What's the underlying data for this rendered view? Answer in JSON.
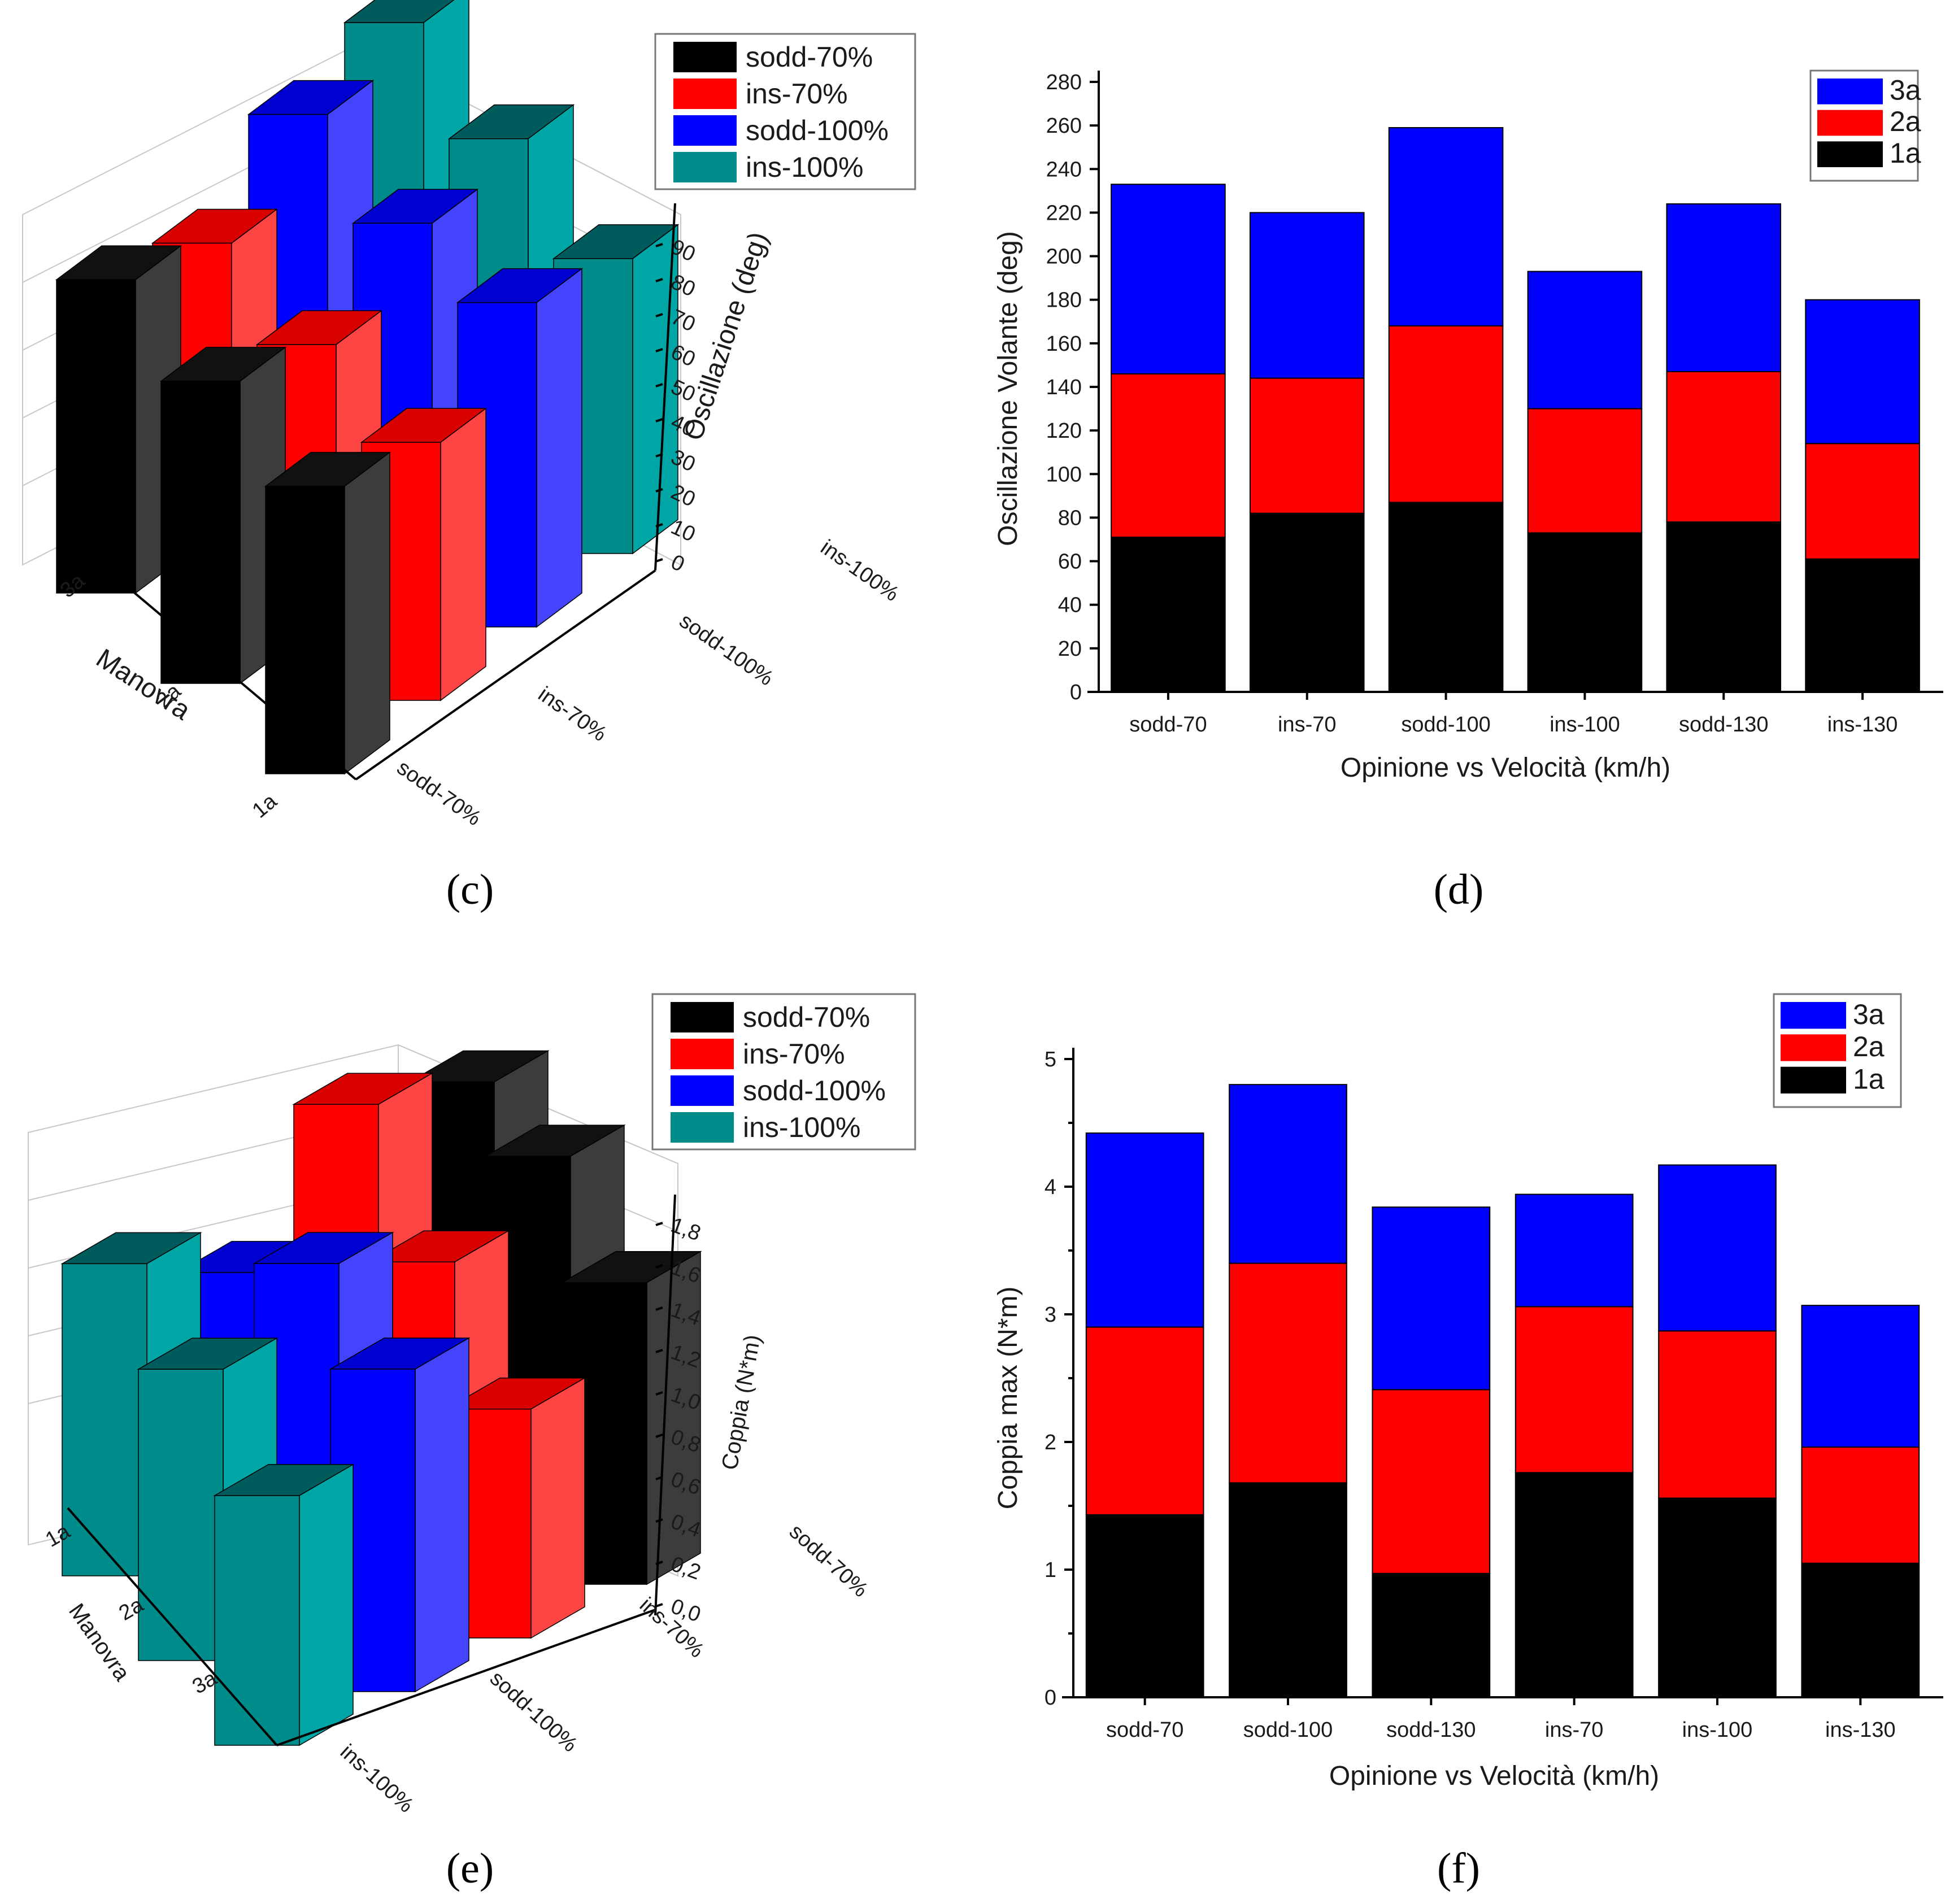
{
  "panels": [
    {
      "id": "c",
      "label": "(c)"
    },
    {
      "id": "d",
      "label": "(d)"
    },
    {
      "id": "e",
      "label": "(e)"
    },
    {
      "id": "f",
      "label": "(f)"
    }
  ],
  "colors": {
    "black": "#000000",
    "red": "#ff0000",
    "blue": "#0000ff",
    "teal": "#008b8b",
    "black_side": "#3c3c3c",
    "red_side": "#ff4444",
    "blue_side": "#4444ff",
    "teal_side": "#00a6a6",
    "black_top": "#111111",
    "red_top": "#d90000",
    "blue_top": "#0000d0",
    "teal_top": "#005c5c"
  },
  "chart_data": [
    {
      "panel": "c",
      "type": "bar3d",
      "zlabel": "Oscillazione (deg)",
      "ylabel": "Manovra",
      "z_ticks": [
        "0",
        "10",
        "20",
        "30",
        "40",
        "50",
        "60",
        "70",
        "80",
        "90"
      ],
      "zlim": [
        0,
        95
      ],
      "rows": [
        "3a",
        "2a",
        "1a"
      ],
      "columns": [
        "sodd-70%",
        "ins-70%",
        "sodd-100%",
        "ins-100%"
      ],
      "legend": [
        "sodd-70%",
        "ins-70%",
        "sodd-100%",
        "ins-100%"
      ],
      "values": [
        [
          85,
          75,
          90,
          95
        ],
        [
          82,
          72,
          85,
          88
        ],
        [
          78,
          70,
          88,
          80
        ]
      ]
    },
    {
      "panel": "d",
      "type": "stacked-bar",
      "xlabel": "Opinione vs Velocità (km/h)",
      "ylabel": "Oscillazione Volante (deg)",
      "ylim": [
        0,
        280
      ],
      "y_ticks": [
        "0",
        "20",
        "40",
        "60",
        "80",
        "100",
        "120",
        "140",
        "160",
        "180",
        "200",
        "220",
        "240",
        "260",
        "280"
      ],
      "categories": [
        "sodd-70",
        "ins-70",
        "sodd-100",
        "ins-100",
        "sodd-130",
        "ins-130"
      ],
      "legend": [
        "3a",
        "2a",
        "1a"
      ],
      "series": [
        {
          "name": "1a",
          "values": [
            71,
            82,
            87,
            73,
            78,
            61
          ]
        },
        {
          "name": "2a",
          "values": [
            75,
            62,
            81,
            57,
            69,
            53
          ]
        },
        {
          "name": "3a",
          "values": [
            87,
            76,
            91,
            63,
            77,
            66
          ]
        }
      ]
    },
    {
      "panel": "e",
      "type": "bar3d",
      "zlabel": "Coppia (N*m)",
      "ylabel": "Manovra",
      "z_ticks": [
        "0,0",
        "0,2",
        "0,4",
        "0,6",
        "0,8",
        "1,0",
        "1,2",
        "1,4",
        "1,6",
        "1,8"
      ],
      "zlim": [
        0,
        1.9
      ],
      "rows": [
        "1a",
        "2a",
        "3a"
      ],
      "columns": [
        "ins-100%",
        "sodd-100%",
        "ins-70%",
        "sodd-70%"
      ],
      "legend": [
        "sodd-70%",
        "ins-70%",
        "sodd-100%",
        "ins-100%"
      ],
      "values": [
        [
          1.5,
          1.2,
          1.75,
          1.6
        ],
        [
          1.4,
          1.65,
          1.4,
          1.65
        ],
        [
          1.2,
          1.55,
          1.1,
          1.45
        ]
      ]
    },
    {
      "panel": "f",
      "type": "stacked-bar",
      "xlabel": "Opinione vs Velocità (km/h)",
      "ylabel": "Coppia max (N*m)",
      "ylim": [
        0,
        5
      ],
      "y_ticks": [
        "0",
        "1",
        "2",
        "3",
        "4",
        "5"
      ],
      "categories": [
        "sodd-70",
        "sodd-100",
        "sodd-130",
        "ins-70",
        "ins-100",
        "ins-130"
      ],
      "legend": [
        "3a",
        "2a",
        "1a"
      ],
      "series": [
        {
          "name": "1a",
          "values": [
            1.43,
            1.68,
            0.97,
            1.76,
            1.56,
            1.05
          ]
        },
        {
          "name": "2a",
          "values": [
            1.47,
            1.72,
            1.44,
            1.3,
            1.31,
            0.91
          ]
        },
        {
          "name": "3a",
          "values": [
            1.52,
            1.4,
            1.43,
            0.88,
            1.3,
            1.11
          ]
        }
      ]
    }
  ]
}
